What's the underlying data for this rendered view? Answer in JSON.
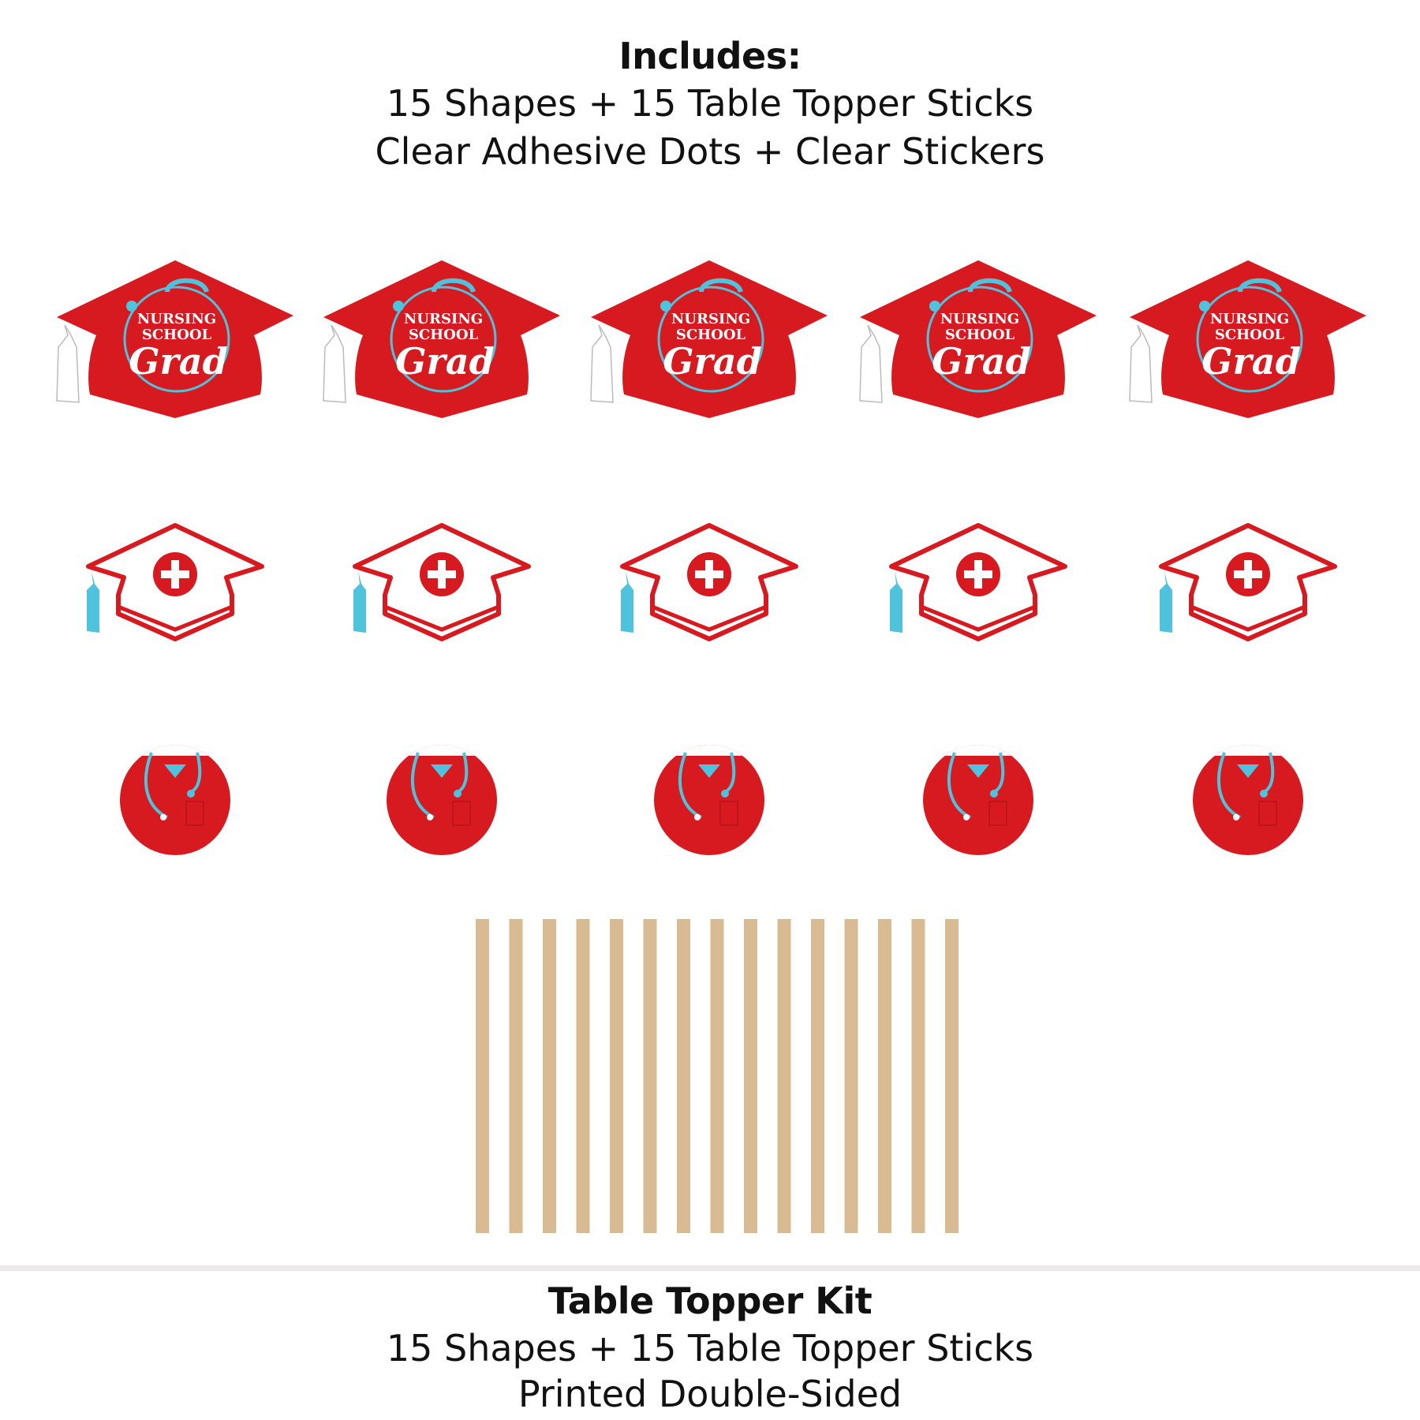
{
  "header": {
    "title": "Includes:",
    "lines": [
      "15 Shapes + 15 Table Topper Sticks",
      "Clear Adhesive Dots + Clear Stickers"
    ]
  },
  "shapes": {
    "cap_text": [
      "NURSING",
      "SCHOOL",
      "Grad"
    ],
    "rows": [
      {
        "type": "red-graduation-cap",
        "count": 5
      },
      {
        "type": "white-cap-with-red-cross",
        "count": 5
      },
      {
        "type": "red-scrubs-with-stethoscope-circle",
        "count": 5
      }
    ],
    "stick_count": 15
  },
  "footer": {
    "title": "Table Topper Kit",
    "lines": [
      "15 Shapes + 15 Table Topper Sticks",
      "Printed Double-Sided"
    ]
  },
  "colors": {
    "red": "#d71920",
    "teal": "#4fc3dc",
    "wood": "#d9bb93",
    "divider": "#ebe9e9"
  }
}
